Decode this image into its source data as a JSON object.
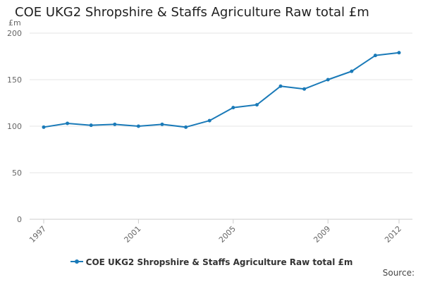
{
  "chart_data": {
    "type": "line",
    "title": "COE UKG2 Shropshire & Staffs Agriculture Raw total £m",
    "ylabel": "£m",
    "xlabel": "",
    "x": [
      1997,
      1998,
      1999,
      2000,
      2001,
      2002,
      2003,
      2004,
      2005,
      2006,
      2007,
      2008,
      2009,
      2010,
      2011,
      2012
    ],
    "x_tick_labels": [
      "1997",
      "2001",
      "2005",
      "2009",
      "2012"
    ],
    "y_tick_labels": [
      "0",
      "50",
      "100",
      "150",
      "200"
    ],
    "ylim": [
      0,
      200
    ],
    "grid": true,
    "legend_position": "bottom",
    "series": [
      {
        "name": "COE UKG2 Shropshire & Staffs Agriculture Raw total £m",
        "color": "#1a7ab8",
        "values": [
          99,
          103,
          101,
          102,
          100,
          102,
          99,
          106,
          120,
          123,
          143,
          140,
          150,
          159,
          176,
          179
        ]
      }
    ]
  },
  "source_label": "Source:"
}
